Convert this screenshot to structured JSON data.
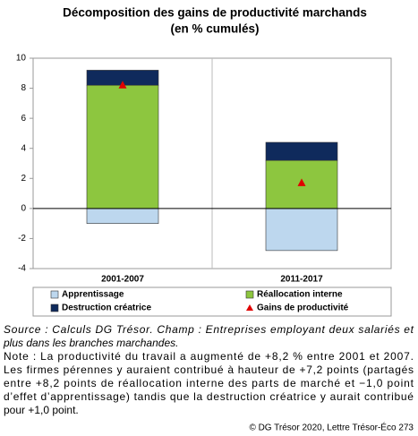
{
  "chart_data": {
    "type": "bar",
    "stacked": true,
    "title": "Décomposition des gains de productivité marchands",
    "subtitle": "(en % cumulés)",
    "categories": [
      "2001-2007",
      "2011-2017"
    ],
    "series": [
      {
        "name": "Apprentissage",
        "color": "#bdd7ee",
        "values": [
          -1.0,
          -2.8
        ]
      },
      {
        "name": "Réallocation interne",
        "color": "#8dc63f",
        "values": [
          8.2,
          3.2
        ]
      },
      {
        "name": "Destruction créatrice",
        "color": "#0f2a5c",
        "values": [
          1.0,
          1.2
        ]
      },
      {
        "name": "Gains de productivité",
        "color": "#e00000",
        "values": [
          8.2,
          1.7
        ],
        "type": "marker"
      }
    ],
    "ylim": [
      -4,
      10
    ],
    "yticks": [
      -4,
      -2,
      0,
      2,
      4,
      6,
      8,
      10
    ]
  },
  "source_lines": [
    "Source : Calculs DG Trésor. Champ : Entreprises employant deux salariés et",
    "plus dans les branches marchandes."
  ],
  "note_lines": [
    "Note : La productivité du travail a augmenté de +8,2 % entre 2001 et 2007.",
    "Les firmes pérennes y auraient contribué à hauteur de +7,2 points (partagés",
    "entre +8,2 points de réallocation interne des parts de marché et −1,0 point",
    "d’effet d’apprentissage) tandis que la destruction créatrice y aurait contribué",
    "pour +1,0 point."
  ],
  "credit": "© DG Trésor 2020, Lettre Trésor-Éco 273"
}
